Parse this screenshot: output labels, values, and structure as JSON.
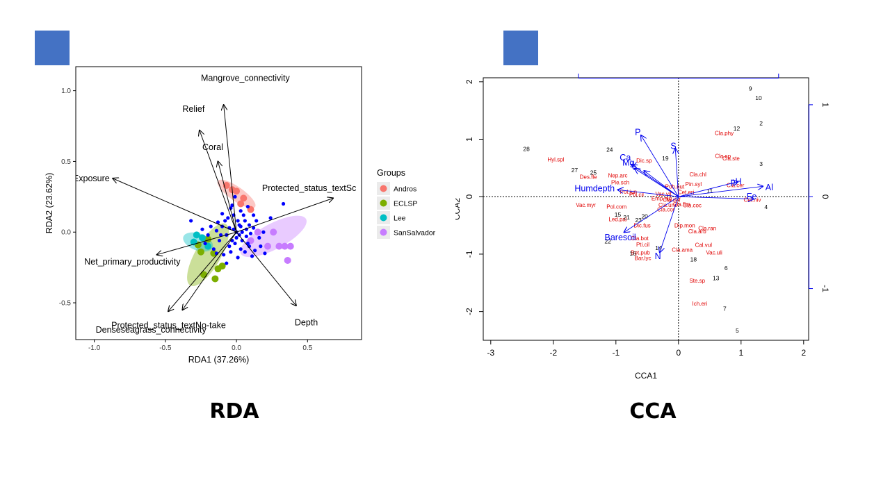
{
  "slide": {
    "accent_color": "#4472C4",
    "captions": {
      "left": "RDA",
      "right": "CCA"
    }
  },
  "chart_data": [
    {
      "type": "scatter",
      "chart_kind": "rda-triplot",
      "xlabel": "RDA1 (37.26%)",
      "ylabel": "RDA2 (23.62%)",
      "xlim": [
        -1.13,
        0.88
      ],
      "ylim": [
        -0.76,
        1.17
      ],
      "x_ticks": [
        "-1.0",
        "-0.5",
        "0.0",
        "0.5"
      ],
      "y_ticks": [
        "-0.5",
        "0.0",
        "0.5",
        "1.0"
      ],
      "legend": {
        "title": "Groups",
        "placement": "right",
        "entries": [
          {
            "name": "Andros",
            "color": "#F8766D"
          },
          {
            "name": "ECLSP",
            "color": "#7CAE00"
          },
          {
            "name": "Lee",
            "color": "#00BFC4"
          },
          {
            "name": "SanSalvador",
            "color": "#C77CFF"
          }
        ]
      },
      "site_color": "#0000FF",
      "arrow_color": "#000000",
      "ellipses": [
        {
          "group": "Andros",
          "cx": 0.0,
          "cy": 0.27,
          "rx": 0.16,
          "ry": 0.05,
          "angle": -35
        },
        {
          "group": "ECLSP",
          "cx": -0.2,
          "cy": -0.16,
          "rx": 0.25,
          "ry": 0.09,
          "angle": 60
        },
        {
          "group": "Lee",
          "cx": -0.27,
          "cy": -0.07,
          "rx": 0.11,
          "ry": 0.06,
          "angle": -20
        },
        {
          "group": "SanSalvador",
          "cx": 0.26,
          "cy": -0.03,
          "rx": 0.26,
          "ry": 0.09,
          "angle": 28
        }
      ],
      "group_points": [
        {
          "group": "Andros",
          "x": -0.07,
          "y": 0.33
        },
        {
          "group": "Andros",
          "x": -0.03,
          "y": 0.3
        },
        {
          "group": "Andros",
          "x": 0.0,
          "y": 0.29
        },
        {
          "group": "Andros",
          "x": 0.05,
          "y": 0.24
        },
        {
          "group": "Andros",
          "x": 0.1,
          "y": 0.16
        },
        {
          "group": "Andros",
          "x": 0.03,
          "y": 0.2
        },
        {
          "group": "ECLSP",
          "x": -0.2,
          "y": -0.05
        },
        {
          "group": "ECLSP",
          "x": -0.25,
          "y": -0.14
        },
        {
          "group": "ECLSP",
          "x": -0.16,
          "y": -0.15
        },
        {
          "group": "ECLSP",
          "x": -0.1,
          "y": -0.24
        },
        {
          "group": "ECLSP",
          "x": -0.13,
          "y": -0.26
        },
        {
          "group": "ECLSP",
          "x": -0.15,
          "y": -0.33
        },
        {
          "group": "ECLSP",
          "x": -0.23,
          "y": -0.3
        },
        {
          "group": "ECLSP",
          "x": -0.27,
          "y": -0.09
        },
        {
          "group": "Lee",
          "x": -0.3,
          "y": -0.07
        },
        {
          "group": "Lee",
          "x": -0.24,
          "y": -0.04
        },
        {
          "group": "Lee",
          "x": -0.2,
          "y": -0.1
        },
        {
          "group": "Lee",
          "x": -0.28,
          "y": -0.02
        },
        {
          "group": "SanSalvador",
          "x": 0.15,
          "y": 0.0
        },
        {
          "group": "SanSalvador",
          "x": 0.26,
          "y": 0.0
        },
        {
          "group": "SanSalvador",
          "x": 0.22,
          "y": -0.1
        },
        {
          "group": "SanSalvador",
          "x": 0.3,
          "y": -0.1
        },
        {
          "group": "SanSalvador",
          "x": 0.34,
          "y": -0.1
        },
        {
          "group": "SanSalvador",
          "x": 0.38,
          "y": -0.1
        },
        {
          "group": "SanSalvador",
          "x": 0.36,
          "y": -0.2
        },
        {
          "group": "SanSalvador",
          "x": 0.1,
          "y": -0.06
        }
      ],
      "site_points": [
        [
          -0.04,
          0.17
        ],
        [
          0.03,
          0.15
        ],
        [
          -0.06,
          0.1
        ],
        [
          0.02,
          0.05
        ],
        [
          -0.02,
          0.02
        ],
        [
          0.04,
          0.0
        ],
        [
          -0.1,
          0.04
        ],
        [
          -0.14,
          0.01
        ],
        [
          -0.07,
          -0.02
        ],
        [
          0.0,
          -0.04
        ],
        [
          0.07,
          -0.03
        ],
        [
          0.12,
          0.03
        ],
        [
          -0.02,
          0.12
        ],
        [
          0.06,
          0.08
        ],
        [
          -0.12,
          -0.06
        ],
        [
          -0.05,
          -0.1
        ],
        [
          0.03,
          -0.12
        ],
        [
          0.08,
          -0.08
        ],
        [
          -0.16,
          -0.12
        ],
        [
          -0.09,
          -0.16
        ],
        [
          -0.2,
          -0.02
        ],
        [
          0.09,
          0.05
        ],
        [
          0.16,
          -0.04
        ],
        [
          0.13,
          -0.13
        ],
        [
          -0.01,
          0.25
        ],
        [
          0.01,
          0.08
        ],
        [
          -0.03,
          -0.06
        ],
        [
          0.05,
          0.12
        ],
        [
          -0.08,
          0.08
        ],
        [
          0.1,
          -0.01
        ],
        [
          -0.13,
          0.07
        ],
        [
          0.0,
          0.0
        ],
        [
          0.02,
          -0.02
        ],
        [
          -0.05,
          0.03
        ],
        [
          0.07,
          0.02
        ],
        [
          0.04,
          -0.06
        ],
        [
          -0.11,
          -0.02
        ],
        [
          0.06,
          -0.14
        ],
        [
          -0.07,
          -0.22
        ],
        [
          0.14,
          0.08
        ],
        [
          -0.18,
          0.04
        ],
        [
          0.19,
          0.0
        ],
        [
          0.11,
          -0.17
        ],
        [
          -0.03,
          0.19
        ],
        [
          -0.14,
          -0.15
        ],
        [
          0.01,
          -0.18
        ],
        [
          0.17,
          -0.1
        ],
        [
          -0.22,
          -0.08
        ],
        [
          0.33,
          0.2
        ],
        [
          -0.32,
          0.08
        ],
        [
          0.24,
          0.1
        ],
        [
          0.08,
          0.18
        ],
        [
          -0.24,
          0.02
        ],
        [
          0.2,
          -0.15
        ],
        [
          -0.04,
          -0.14
        ],
        [
          0.12,
          0.12
        ],
        [
          -0.1,
          0.13
        ],
        [
          0.03,
          0.04
        ],
        [
          -0.01,
          -0.08
        ],
        [
          0.09,
          -0.1
        ]
      ],
      "vectors": [
        {
          "label": "Mangrove_connectivity",
          "x": -0.09,
          "y": 0.9
        },
        {
          "label": "Relief",
          "x": -0.26,
          "y": 0.72
        },
        {
          "label": "Coral",
          "x": -0.13,
          "y": 0.5
        },
        {
          "label": "Exposure",
          "x": -0.87,
          "y": 0.38
        },
        {
          "label": "Protected_status_textSc",
          "x": 0.68,
          "y": 0.24
        },
        {
          "label": "Net_primary_productivity",
          "x": -0.56,
          "y": -0.16
        },
        {
          "label": "Protected_status_textNo-take",
          "x": -0.38,
          "y": -0.55
        },
        {
          "label": "Denseseagrass_connectivity",
          "x": -0.48,
          "y": -0.56
        },
        {
          "label": "Depth",
          "x": 0.42,
          "y": -0.52
        }
      ],
      "vector_labels": [
        {
          "label": "Mangrove_connectivity",
          "x": -0.25,
          "y": 1.07
        },
        {
          "label": "Relief",
          "x": -0.38,
          "y": 0.85
        },
        {
          "label": "Coral",
          "x": -0.24,
          "y": 0.58
        },
        {
          "label": "Exposure",
          "x": -1.15,
          "y": 0.36
        },
        {
          "label": "Protected_status_textSc",
          "x": 0.18,
          "y": 0.29
        },
        {
          "label": "Net_primary_productivity",
          "x": -1.07,
          "y": -0.23
        },
        {
          "label": "Protected_status_textNo-take",
          "x": -0.88,
          "y": -0.68
        },
        {
          "label": "Denseseagrass_connectivity",
          "x": -0.99,
          "y": -0.71
        },
        {
          "label": "Depth",
          "x": 0.41,
          "y": -0.66
        }
      ]
    },
    {
      "type": "scatter",
      "chart_kind": "cca-triplot",
      "xlabel": "CCA1",
      "ylabel": "CCA2",
      "xlim": [
        -3.12,
        2.08
      ],
      "ylim": [
        -2.5,
        2.07
      ],
      "x_ticks": [
        "-3",
        "-2",
        "-1",
        "0",
        "1",
        "2"
      ],
      "y_ticks": [
        "-2",
        "-1",
        "0",
        "1",
        "2"
      ],
      "right_ticks": [
        "1",
        "0",
        "-1"
      ],
      "right_tick_values": [
        1.6,
        0.0,
        -1.6
      ],
      "top_tick_values": [
        -1.6,
        1.6
      ],
      "species_color": "#E00000",
      "site_color": "#000000",
      "vector_color": "#0000EE",
      "sites": [
        {
          "label": "9",
          "x": 1.15,
          "y": 1.88
        },
        {
          "label": "10",
          "x": 1.28,
          "y": 1.72
        },
        {
          "label": "2",
          "x": 1.32,
          "y": 1.28
        },
        {
          "label": "12",
          "x": 0.93,
          "y": 1.19
        },
        {
          "label": "3",
          "x": 1.32,
          "y": 0.57
        },
        {
          "label": "11",
          "x": 0.5,
          "y": 0.1
        },
        {
          "label": "4",
          "x": 1.4,
          "y": -0.18
        },
        {
          "label": "28",
          "x": -2.43,
          "y": 0.83
        },
        {
          "label": "24",
          "x": -1.1,
          "y": 0.82
        },
        {
          "label": "27",
          "x": -1.66,
          "y": 0.46
        },
        {
          "label": "25",
          "x": -1.36,
          "y": 0.42
        },
        {
          "label": "19",
          "x": -0.21,
          "y": 0.67
        },
        {
          "label": "15",
          "x": -0.97,
          "y": -0.31
        },
        {
          "label": "21",
          "x": -0.83,
          "y": -0.36
        },
        {
          "label": "23",
          "x": -0.64,
          "y": -0.41
        },
        {
          "label": "20",
          "x": -0.54,
          "y": -0.34
        },
        {
          "label": "22",
          "x": -1.13,
          "y": -0.78
        },
        {
          "label": "16",
          "x": -0.73,
          "y": -0.99
        },
        {
          "label": "14",
          "x": -0.32,
          "y": -0.89
        },
        {
          "label": "18",
          "x": 0.24,
          "y": -1.09
        },
        {
          "label": "6",
          "x": 0.76,
          "y": -1.24
        },
        {
          "label": "13",
          "x": 0.6,
          "y": -1.42
        },
        {
          "label": "7",
          "x": 0.74,
          "y": -1.95
        },
        {
          "label": "5",
          "x": 0.94,
          "y": -2.33
        }
      ],
      "species": [
        {
          "label": "Cla.phy",
          "x": 0.73,
          "y": 1.11
        },
        {
          "label": "Cla.sp",
          "x": 0.71,
          "y": 0.71
        },
        {
          "label": "Cla.ste",
          "x": 0.84,
          "y": 0.67
        },
        {
          "label": "Cla.chl",
          "x": 0.31,
          "y": 0.39
        },
        {
          "label": "Cla.cer",
          "x": 0.91,
          "y": 0.2
        },
        {
          "label": "Pin.syl",
          "x": 0.24,
          "y": 0.22
        },
        {
          "label": "Cet.niv",
          "x": 1.18,
          "y": -0.05
        },
        {
          "label": "Hyl.spl",
          "x": -1.96,
          "y": 0.65
        },
        {
          "label": "Dic.sp",
          "x": -0.55,
          "y": 0.63
        },
        {
          "label": "Nep.arc",
          "x": -0.97,
          "y": 0.37
        },
        {
          "label": "Des.fle",
          "x": -1.44,
          "y": 0.35
        },
        {
          "label": "Ple.sch",
          "x": -0.93,
          "y": 0.25
        },
        {
          "label": "Poh.nut",
          "x": -0.06,
          "y": 0.18
        },
        {
          "label": "Pol.jun",
          "x": -0.8,
          "y": 0.09
        },
        {
          "label": "Ptil.cil",
          "x": -0.67,
          "y": 0.04
        },
        {
          "label": "Vac.vit",
          "x": -0.24,
          "y": 0.05
        },
        {
          "label": "Cet.eri",
          "x": 0.12,
          "y": 0.08
        },
        {
          "label": "Vac.myr",
          "x": -1.48,
          "y": -0.14
        },
        {
          "label": "Pol.com",
          "x": -0.99,
          "y": -0.17
        },
        {
          "label": "Cla.coc",
          "x": 0.22,
          "y": -0.15
        },
        {
          "label": "Led.pal",
          "x": -0.97,
          "y": -0.39
        },
        {
          "label": "Dic.fus",
          "x": -0.58,
          "y": -0.5
        },
        {
          "label": "Dip.mon",
          "x": 0.1,
          "y": -0.5
        },
        {
          "label": "Cla.ran",
          "x": 0.46,
          "y": -0.55
        },
        {
          "label": "Cla.arb",
          "x": 0.3,
          "y": -0.6
        },
        {
          "label": "Cla.bot",
          "x": -0.62,
          "y": -0.72
        },
        {
          "label": "Pti.cil",
          "x": -0.57,
          "y": -0.83
        },
        {
          "label": "Cal.vul",
          "x": 0.4,
          "y": -0.84
        },
        {
          "label": "Cla.ama",
          "x": 0.06,
          "y": -0.92
        },
        {
          "label": "Vac.uli",
          "x": 0.57,
          "y": -0.97
        },
        {
          "label": "Bet.pub",
          "x": -0.61,
          "y": -0.97
        },
        {
          "label": "Bar.lyc",
          "x": -0.57,
          "y": -1.07
        },
        {
          "label": "Ste.sp",
          "x": 0.3,
          "y": -1.46
        },
        {
          "label": "Ich.eri",
          "x": 0.34,
          "y": -1.86
        },
        {
          "label": "Emp.nig",
          "x": -0.27,
          "y": -0.03
        },
        {
          "label": "Cla.unc",
          "x": -0.17,
          "y": -0.14
        },
        {
          "label": "Cla.cor",
          "x": -0.2,
          "y": -0.22
        },
        {
          "label": "Cla.fim",
          "x": 0.05,
          "y": -0.13
        },
        {
          "label": "Cla.def",
          "x": -0.11,
          "y": -0.05
        }
      ],
      "vectors": [
        {
          "label": "P",
          "x": -0.6,
          "y": 1.07
        },
        {
          "label": "S",
          "x": -0.05,
          "y": 0.84
        },
        {
          "label": "Ca",
          "x": -0.75,
          "y": 0.56
        },
        {
          "label": "Mg",
          "x": -0.7,
          "y": 0.49
        },
        {
          "label": "K",
          "x": -0.55,
          "y": 0.45
        },
        {
          "label": "Humdepth",
          "x": -0.97,
          "y": 0.12
        },
        {
          "label": "pH",
          "x": 0.95,
          "y": 0.26
        },
        {
          "label": "Al",
          "x": 1.35,
          "y": 0.18
        },
        {
          "label": "Fe",
          "x": 1.2,
          "y": -0.04
        },
        {
          "label": "Baresoil",
          "x": -0.87,
          "y": -0.62
        },
        {
          "label": "N",
          "x": -0.3,
          "y": -0.97
        }
      ],
      "vector_labels": [
        {
          "label": "P",
          "x": -0.65,
          "y": 1.12
        },
        {
          "label": "S",
          "x": -0.08,
          "y": 0.88
        },
        {
          "label": "Ca",
          "x": -0.85,
          "y": 0.68
        },
        {
          "label": "Mg",
          "x": -0.8,
          "y": 0.59
        },
        {
          "label": "K",
          "x": -0.7,
          "y": 0.54
        },
        {
          "label": "Humdepth",
          "x": -1.34,
          "y": 0.14
        },
        {
          "label": "pH",
          "x": 0.92,
          "y": 0.26
        },
        {
          "label": "Al",
          "x": 1.45,
          "y": 0.16
        },
        {
          "label": "Fe",
          "x": 1.17,
          "y": 0.0
        },
        {
          "label": "Baresoil",
          "x": -0.93,
          "y": -0.71
        },
        {
          "label": "N",
          "x": -0.33,
          "y": -1.04
        }
      ]
    }
  ]
}
